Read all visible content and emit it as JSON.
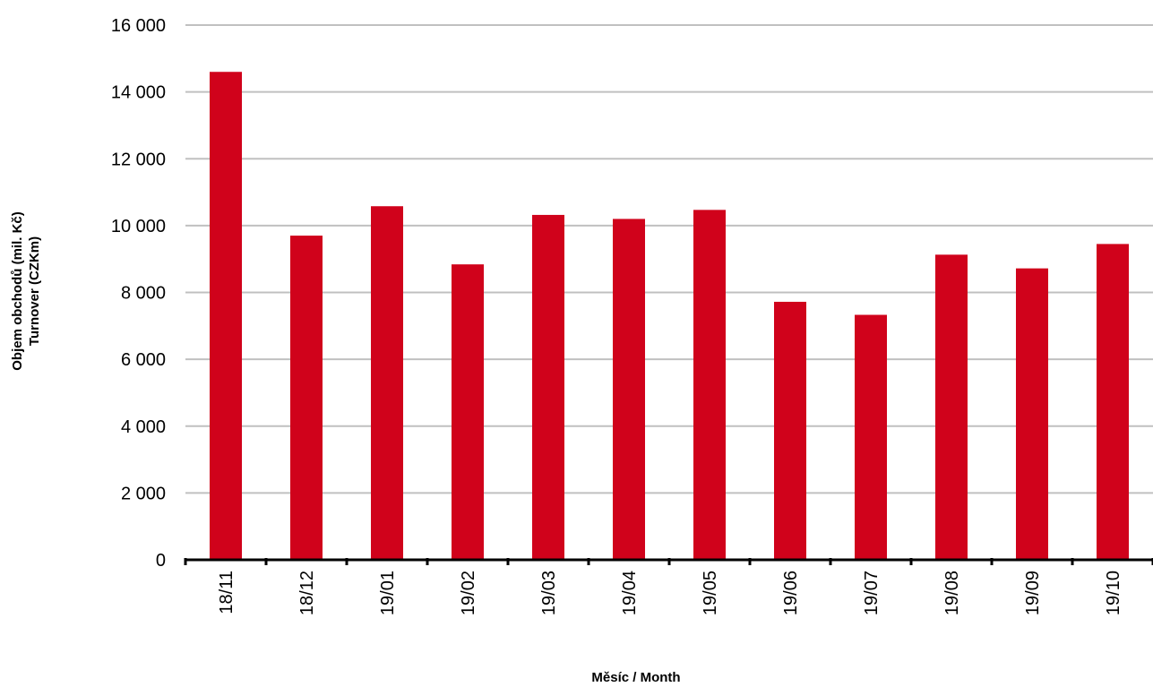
{
  "chart_data": {
    "type": "bar",
    "categories": [
      "18/11",
      "18/12",
      "19/01",
      "19/02",
      "19/03",
      "19/04",
      "19/05",
      "19/06",
      "19/07",
      "19/08",
      "19/09",
      "19/10"
    ],
    "values": [
      14600,
      9700,
      10580,
      8840,
      10320,
      10200,
      10470,
      7720,
      7330,
      9130,
      8720,
      9450
    ],
    "ylabel_line1": "Objem obchodů (mil. Kč)",
    "ylabel_line2": "Turnover (CZKm)",
    "xlabel": "Měsíc / Month",
    "ylim": [
      0,
      16000
    ],
    "yticks": [
      0,
      2000,
      4000,
      6000,
      8000,
      10000,
      12000,
      14000,
      16000
    ],
    "ytick_labels": [
      "0",
      "2 000",
      "4 000",
      "6 000",
      "8 000",
      "10 000",
      "12 000",
      "14 000",
      "16 000"
    ],
    "grid": true,
    "colors": {
      "bar": "#d0021b",
      "grid": "#c0c0c0",
      "axis": "#000000"
    }
  }
}
